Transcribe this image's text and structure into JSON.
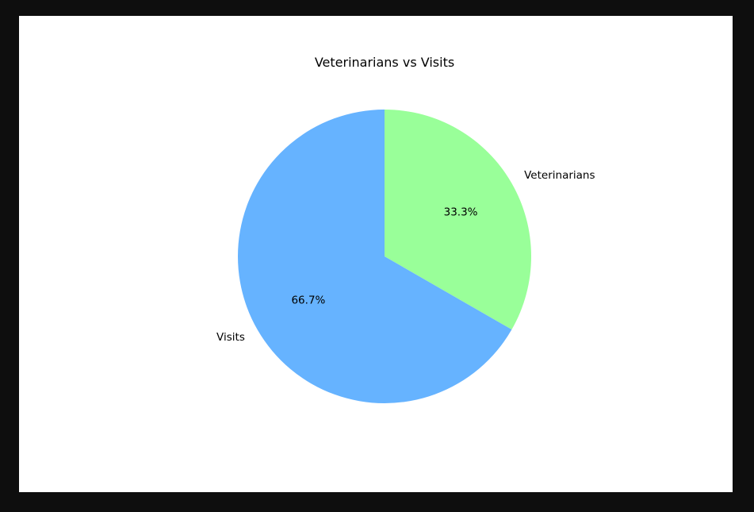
{
  "chart_data": {
    "type": "pie",
    "title": "Veterinarians vs Visits",
    "slices": [
      {
        "label": "Veterinarians",
        "value": 33.3,
        "percent_label": "33.3%",
        "color": "#99ff99"
      },
      {
        "label": "Visits",
        "value": 66.7,
        "percent_label": "66.7%",
        "color": "#66b3ff"
      }
    ],
    "start_angle_deg": 90,
    "direction": "clockwise"
  }
}
